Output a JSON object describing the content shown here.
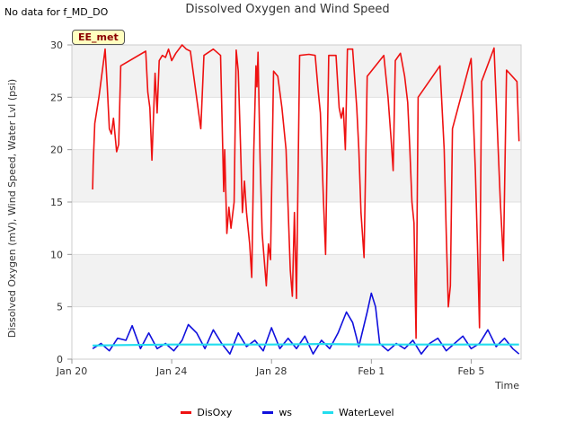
{
  "header": {
    "no_data_text": "No data for f_MD_DO",
    "site_label": "EE_met"
  },
  "chart_data": {
    "type": "line",
    "title": "Dissolved Oxygen and Wind Speed",
    "xlabel": "Time",
    "ylabel": "Dissolved Oxygen (mV), Wind Speed, Water Lvl (psi)",
    "xlim": [
      "2022-01-20",
      "2022-02-07"
    ],
    "ylim": [
      0,
      30
    ],
    "x_ticks": [
      {
        "date": "2022-01-20",
        "label": "Jan 20"
      },
      {
        "date": "2022-01-24",
        "label": "Jan 24"
      },
      {
        "date": "2022-01-28",
        "label": "Jan 28"
      },
      {
        "date": "2022-02-01",
        "label": "Feb 1"
      },
      {
        "date": "2022-02-05",
        "label": "Feb 5"
      }
    ],
    "y_ticks": [
      0,
      5,
      10,
      15,
      20,
      25,
      30
    ],
    "grid": "horizontal bands",
    "legend_position": "bottom",
    "series": [
      {
        "name": "DisOxy",
        "color": "#ee1111",
        "points": [
          [
            "2022-01-20 20:00",
            16.2
          ],
          [
            "2022-01-20 20:30",
            18.5
          ],
          [
            "2022-01-20 22:00",
            22.5
          ],
          [
            "2022-01-21 02:00",
            25.0
          ],
          [
            "2022-01-21 08:00",
            29.6
          ],
          [
            "2022-01-21 10:00",
            26.0
          ],
          [
            "2022-01-21 12:00",
            22.0
          ],
          [
            "2022-01-21 14:00",
            21.5
          ],
          [
            "2022-01-21 16:00",
            23.0
          ],
          [
            "2022-01-21 19:00",
            19.8
          ],
          [
            "2022-01-21 21:00",
            20.5
          ],
          [
            "2022-01-21 23:00",
            28.0
          ],
          [
            "2022-01-22 23:00",
            29.4
          ],
          [
            "2022-01-23 01:00",
            25.5
          ],
          [
            "2022-01-23 03:00",
            24.0
          ],
          [
            "2022-01-23 05:00",
            19.0
          ],
          [
            "2022-01-23 08:00",
            27.3
          ],
          [
            "2022-01-23 10:00",
            23.5
          ],
          [
            "2022-01-23 12:00",
            28.5
          ],
          [
            "2022-01-23 15:00",
            29.0
          ],
          [
            "2022-01-23 18:00",
            28.8
          ],
          [
            "2022-01-23 21:00",
            29.6
          ],
          [
            "2022-01-24 00:00",
            28.5
          ],
          [
            "2022-01-24 04:00",
            29.2
          ],
          [
            "2022-01-24 10:00",
            30.0
          ],
          [
            "2022-01-24 14:00",
            29.6
          ],
          [
            "2022-01-24 18:00",
            29.4
          ],
          [
            "2022-01-25 04:00",
            22.0
          ],
          [
            "2022-01-25 07:00",
            29.0
          ],
          [
            "2022-01-25 16:00",
            29.6
          ],
          [
            "2022-01-25 23:00",
            29.0
          ],
          [
            "2022-01-26 02:00",
            16.0
          ],
          [
            "2022-01-26 03:00",
            20.0
          ],
          [
            "2022-01-26 05:00",
            12.0
          ],
          [
            "2022-01-26 07:00",
            14.5
          ],
          [
            "2022-01-26 09:00",
            12.5
          ],
          [
            "2022-01-26 12:00",
            15.0
          ],
          [
            "2022-01-26 14:00",
            29.5
          ],
          [
            "2022-01-26 16:00",
            27.5
          ],
          [
            "2022-01-26 18:00",
            21.0
          ],
          [
            "2022-01-26 20:00",
            14.0
          ],
          [
            "2022-01-26 22:00",
            17.0
          ],
          [
            "2022-01-27 00:00",
            14.0
          ],
          [
            "2022-01-27 03:00",
            11.0
          ],
          [
            "2022-01-27 05:00",
            7.8
          ],
          [
            "2022-01-27 07:00",
            20.0
          ],
          [
            "2022-01-27 09:00",
            28.0
          ],
          [
            "2022-01-27 10:00",
            26.0
          ],
          [
            "2022-01-27 11:00",
            29.3
          ],
          [
            "2022-01-27 13:00",
            19.0
          ],
          [
            "2022-01-27 15:00",
            12.0
          ],
          [
            "2022-01-27 17:00",
            9.5
          ],
          [
            "2022-01-27 19:00",
            7.0
          ],
          [
            "2022-01-27 21:00",
            11.0
          ],
          [
            "2022-01-27 23:00",
            9.5
          ],
          [
            "2022-01-28 02:00",
            27.5
          ],
          [
            "2022-01-28 06:00",
            27.0
          ],
          [
            "2022-01-28 10:00",
            24.0
          ],
          [
            "2022-01-28 14:00",
            20.0
          ],
          [
            "2022-01-28 18:00",
            8.5
          ],
          [
            "2022-01-28 20:00",
            6.0
          ],
          [
            "2022-01-28 22:00",
            14.0
          ],
          [
            "2022-01-29 00:00",
            5.8
          ],
          [
            "2022-01-29 03:00",
            29.0
          ],
          [
            "2022-01-29 12:00",
            29.1
          ],
          [
            "2022-01-29 18:00",
            29.0
          ],
          [
            "2022-01-29 21:00",
            25.5
          ],
          [
            "2022-01-29 23:00",
            23.5
          ],
          [
            "2022-01-30 02:00",
            15.0
          ],
          [
            "2022-01-30 04:00",
            10.0
          ],
          [
            "2022-01-30 07:00",
            29.0
          ],
          [
            "2022-01-30 14:00",
            29.0
          ],
          [
            "2022-01-30 17:00",
            24.0
          ],
          [
            "2022-01-30 19:00",
            23.0
          ],
          [
            "2022-01-30 21:00",
            24.0
          ],
          [
            "2022-01-30 23:00",
            20.0
          ],
          [
            "2022-01-31 01:00",
            29.6
          ],
          [
            "2022-01-31 06:00",
            29.6
          ],
          [
            "2022-01-31 10:00",
            24.0
          ],
          [
            "2022-01-31 12:00",
            20.0
          ],
          [
            "2022-01-31 14:00",
            14.0
          ],
          [
            "2022-01-31 17:00",
            9.7
          ],
          [
            "2022-01-31 20:00",
            27.0
          ],
          [
            "2022-02-01 12:00",
            29.0
          ],
          [
            "2022-02-01 16:00",
            25.0
          ],
          [
            "2022-02-01 19:00",
            21.0
          ],
          [
            "2022-02-01 21:00",
            18.0
          ],
          [
            "2022-02-01 23:00",
            28.5
          ],
          [
            "2022-02-02 04:00",
            29.2
          ],
          [
            "2022-02-02 08:00",
            27.0
          ],
          [
            "2022-02-02 11:00",
            24.5
          ],
          [
            "2022-02-02 13:00",
            20.0
          ],
          [
            "2022-02-02 15:00",
            15.0
          ],
          [
            "2022-02-02 17:00",
            13.0
          ],
          [
            "2022-02-02 19:00",
            2.0
          ],
          [
            "2022-02-02 21:00",
            25.0
          ],
          [
            "2022-02-03 18:00",
            28.0
          ],
          [
            "2022-02-03 22:00",
            20.0
          ],
          [
            "2022-02-04 00:00",
            12.0
          ],
          [
            "2022-02-04 02:00",
            5.0
          ],
          [
            "2022-02-04 04:00",
            7.0
          ],
          [
            "2022-02-04 06:00",
            22.0
          ],
          [
            "2022-02-05 00:00",
            28.7
          ],
          [
            "2022-02-05 04:00",
            18.0
          ],
          [
            "2022-02-05 06:00",
            11.0
          ],
          [
            "2022-02-05 08:00",
            3.0
          ],
          [
            "2022-02-05 10:00",
            26.5
          ],
          [
            "2022-02-05 22:00",
            29.7
          ],
          [
            "2022-02-06 04:00",
            15.0
          ],
          [
            "2022-02-06 07:00",
            9.4
          ],
          [
            "2022-02-06 10:00",
            27.6
          ],
          [
            "2022-02-06 20:00",
            26.5
          ],
          [
            "2022-02-06 22:00",
            20.8
          ]
        ]
      },
      {
        "name": "ws",
        "color": "#1010dd",
        "points": [
          [
            "2022-01-20 20:00",
            1.0
          ],
          [
            "2022-01-21 04:00",
            1.5
          ],
          [
            "2022-01-21 12:00",
            0.8
          ],
          [
            "2022-01-21 20:00",
            2.0
          ],
          [
            "2022-01-22 04:00",
            1.8
          ],
          [
            "2022-01-22 10:00",
            3.2
          ],
          [
            "2022-01-22 18:00",
            1.0
          ],
          [
            "2022-01-23 02:00",
            2.5
          ],
          [
            "2022-01-23 10:00",
            1.0
          ],
          [
            "2022-01-23 18:00",
            1.5
          ],
          [
            "2022-01-24 02:00",
            0.8
          ],
          [
            "2022-01-24 10:00",
            1.8
          ],
          [
            "2022-01-24 16:00",
            3.3
          ],
          [
            "2022-01-25 00:00",
            2.5
          ],
          [
            "2022-01-25 08:00",
            1.0
          ],
          [
            "2022-01-25 16:00",
            2.8
          ],
          [
            "2022-01-26 00:00",
            1.5
          ],
          [
            "2022-01-26 08:00",
            0.5
          ],
          [
            "2022-01-26 16:00",
            2.5
          ],
          [
            "2022-01-27 00:00",
            1.2
          ],
          [
            "2022-01-27 08:00",
            1.8
          ],
          [
            "2022-01-27 16:00",
            0.8
          ],
          [
            "2022-01-28 00:00",
            3.0
          ],
          [
            "2022-01-28 08:00",
            1.0
          ],
          [
            "2022-01-28 16:00",
            2.0
          ],
          [
            "2022-01-29 00:00",
            1.0
          ],
          [
            "2022-01-29 08:00",
            2.2
          ],
          [
            "2022-01-29 16:00",
            0.5
          ],
          [
            "2022-01-30 00:00",
            1.8
          ],
          [
            "2022-01-30 08:00",
            1.0
          ],
          [
            "2022-01-30 16:00",
            2.5
          ],
          [
            "2022-01-31 00:00",
            4.5
          ],
          [
            "2022-01-31 06:00",
            3.5
          ],
          [
            "2022-01-31 12:00",
            1.2
          ],
          [
            "2022-01-31 20:00",
            4.5
          ],
          [
            "2022-02-01 00:00",
            6.3
          ],
          [
            "2022-02-01 04:00",
            5.0
          ],
          [
            "2022-02-01 08:00",
            1.5
          ],
          [
            "2022-02-01 16:00",
            0.8
          ],
          [
            "2022-02-02 00:00",
            1.5
          ],
          [
            "2022-02-02 08:00",
            1.0
          ],
          [
            "2022-02-02 16:00",
            1.8
          ],
          [
            "2022-02-03 00:00",
            0.5
          ],
          [
            "2022-02-03 08:00",
            1.5
          ],
          [
            "2022-02-03 16:00",
            2.0
          ],
          [
            "2022-02-04 00:00",
            0.8
          ],
          [
            "2022-02-04 08:00",
            1.5
          ],
          [
            "2022-02-04 16:00",
            2.2
          ],
          [
            "2022-02-05 00:00",
            1.0
          ],
          [
            "2022-02-05 08:00",
            1.5
          ],
          [
            "2022-02-05 16:00",
            2.8
          ],
          [
            "2022-02-06 00:00",
            1.2
          ],
          [
            "2022-02-06 08:00",
            2.0
          ],
          [
            "2022-02-06 16:00",
            1.0
          ],
          [
            "2022-02-06 22:00",
            0.5
          ]
        ]
      },
      {
        "name": "WaterLevel",
        "color": "#22ddee",
        "points": [
          [
            "2022-01-20 20:00",
            1.3
          ],
          [
            "2022-01-22 00:00",
            1.35
          ],
          [
            "2022-01-24 00:00",
            1.4
          ],
          [
            "2022-01-26 00:00",
            1.4
          ],
          [
            "2022-01-28 00:00",
            1.4
          ],
          [
            "2022-01-30 00:00",
            1.45
          ],
          [
            "2022-02-01 00:00",
            1.4
          ],
          [
            "2022-02-03 00:00",
            1.4
          ],
          [
            "2022-02-05 00:00",
            1.4
          ],
          [
            "2022-02-06 22:00",
            1.4
          ]
        ]
      }
    ]
  }
}
